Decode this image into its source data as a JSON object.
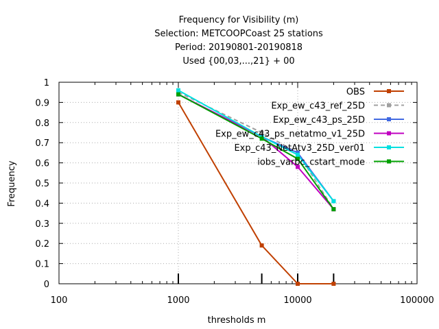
{
  "chart_data": {
    "type": "line",
    "title": [
      "Frequency  for Visibility (m)",
      "Selection: METCOOPCoast     25 stations",
      "Period: 20190801-20190818",
      "Used {00,03,...,21} + 00"
    ],
    "xlabel": "thresholds m",
    "ylabel": "Frequency",
    "x_scale": "log",
    "xlim": [
      100,
      100000
    ],
    "ylim": [
      0,
      1
    ],
    "x_ticks": [
      100,
      1000,
      10000,
      100000
    ],
    "x_tick_labels": [
      "100",
      "1000",
      "10000",
      "100000"
    ],
    "y_ticks": [
      0,
      0.1,
      0.2,
      0.3,
      0.4,
      0.5,
      0.6,
      0.7,
      0.8,
      0.9,
      1
    ],
    "y_tick_labels": [
      "0",
      "0.1",
      "0.2",
      "0.3",
      "0.4",
      "0.5",
      "0.6",
      "0.7",
      "0.8",
      "0.9",
      "1"
    ],
    "grid": true,
    "legend_position": "top-right",
    "x": [
      1000,
      5000,
      10000,
      20000
    ],
    "series": [
      {
        "name": "OBS",
        "values": [
          0.9,
          0.19,
          0.0,
          0.0
        ],
        "color": "#c04000",
        "dashed": false
      },
      {
        "name": "Exp_ew_c43_ref_25D",
        "values": [
          0.95,
          0.75,
          0.65,
          0.37
        ],
        "color": "#a0a0a0",
        "dashed": true
      },
      {
        "name": "Exp_ew_c43_ps_25D",
        "values": [
          0.94,
          0.73,
          0.65,
          0.41
        ],
        "color": "#4169e1",
        "dashed": false
      },
      {
        "name": "Exp_ew_c43_ps_netatmo_v1_25D",
        "values": [
          0.94,
          0.73,
          0.58,
          0.37
        ],
        "color": "#c000c0",
        "dashed": false
      },
      {
        "name": "Exp_c43_NetAtv3_25D_ver01",
        "values": [
          0.96,
          0.73,
          0.64,
          0.41
        ],
        "color": "#00e0e0",
        "dashed": false
      },
      {
        "name": "iobs_varbc_cstart_mode",
        "values": [
          0.94,
          0.72,
          0.62,
          0.37
        ],
        "color": "#00a000",
        "dashed": false
      }
    ],
    "threshold_markers": [
      1000,
      5000,
      10000,
      20000
    ]
  }
}
